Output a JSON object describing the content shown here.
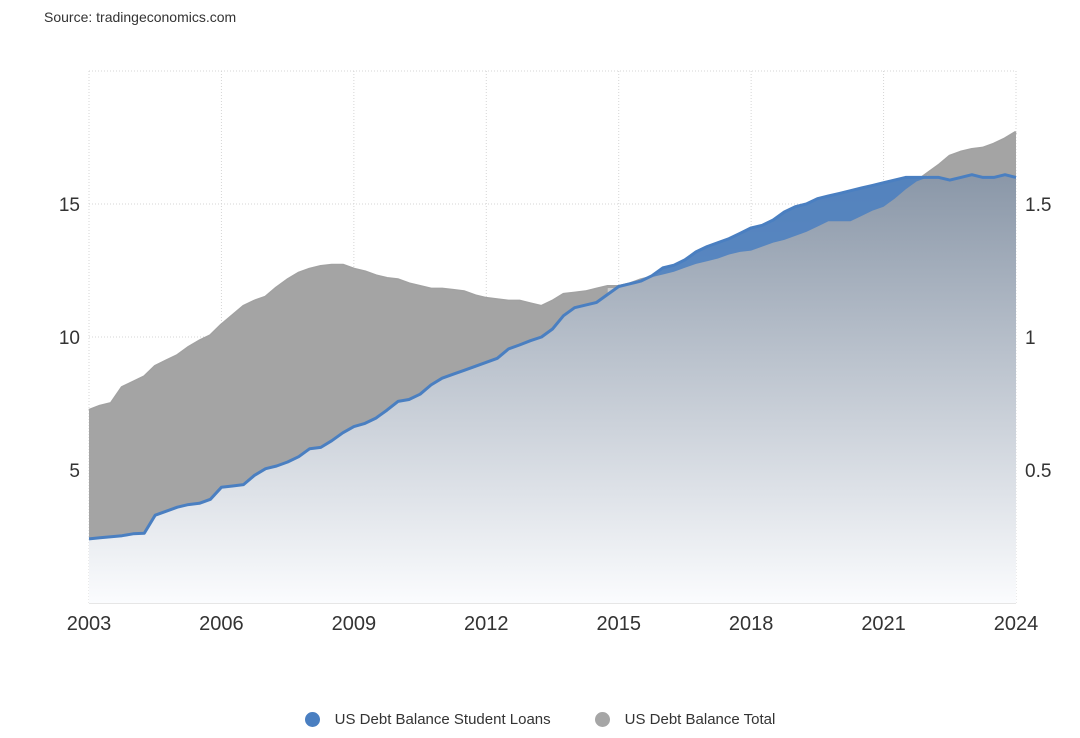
{
  "source_text": "Source: tradingeconomics.com",
  "colors": {
    "student_loans": "#4a7fc1",
    "total": "#a6a6a6",
    "grid": "#d6d6d6",
    "axis_text": "#333333"
  },
  "chart_data": {
    "type": "area",
    "x_tick_labels": [
      "2003",
      "2006",
      "2009",
      "2012",
      "2015",
      "2018",
      "2021",
      "2024"
    ],
    "xlim": [
      2003,
      2024
    ],
    "y_left": {
      "ticks": [
        "5",
        "10",
        "15"
      ],
      "ylim": [
        0,
        20
      ],
      "series": "US Debt Balance Total"
    },
    "y_right": {
      "ticks": [
        "0.5",
        "1",
        "1.5"
      ],
      "ylim": [
        0,
        2.0
      ],
      "series": "US Debt Balance Student Loans"
    },
    "grid": true,
    "legend_position": "bottom",
    "series": [
      {
        "name": "US Debt Balance Total",
        "axis": "left",
        "x": [
          2003.0,
          2003.25,
          2003.5,
          2003.75,
          2004.0,
          2004.25,
          2004.5,
          2004.75,
          2005.0,
          2005.25,
          2005.5,
          2005.75,
          2006.0,
          2006.25,
          2006.5,
          2006.75,
          2007.0,
          2007.25,
          2007.5,
          2007.75,
          2008.0,
          2008.25,
          2008.5,
          2008.75,
          2009.0,
          2009.25,
          2009.5,
          2009.75,
          2010.0,
          2010.25,
          2010.5,
          2010.75,
          2011.0,
          2011.25,
          2011.5,
          2011.75,
          2012.0,
          2012.25,
          2012.5,
          2012.75,
          2013.0,
          2013.25,
          2013.5,
          2013.75,
          2014.0,
          2014.25,
          2014.5,
          2014.75,
          2015.0,
          2015.25,
          2015.5,
          2015.75,
          2016.0,
          2016.25,
          2016.5,
          2016.75,
          2017.0,
          2017.25,
          2017.5,
          2017.75,
          2018.0,
          2018.25,
          2018.5,
          2018.75,
          2019.0,
          2019.25,
          2019.5,
          2019.75,
          2020.0,
          2020.25,
          2020.5,
          2020.75,
          2021.0,
          2021.25,
          2021.5,
          2021.75,
          2022.0,
          2022.25,
          2022.5,
          2022.75,
          2023.0,
          2023.25,
          2023.5,
          2023.75,
          2024.0
        ],
        "values": [
          7.24,
          7.4,
          7.5,
          8.1,
          8.3,
          8.5,
          8.9,
          9.1,
          9.3,
          9.6,
          9.85,
          10.05,
          10.45,
          10.8,
          11.15,
          11.35,
          11.5,
          11.85,
          12.15,
          12.4,
          12.55,
          12.65,
          12.7,
          12.7,
          12.55,
          12.45,
          12.3,
          12.2,
          12.15,
          12.0,
          11.9,
          11.8,
          11.8,
          11.75,
          11.7,
          11.55,
          11.45,
          11.4,
          11.35,
          11.35,
          11.25,
          11.15,
          11.35,
          11.6,
          11.65,
          11.7,
          11.8,
          11.9,
          11.9,
          12.0,
          12.15,
          12.25,
          12.35,
          12.45,
          12.6,
          12.75,
          12.85,
          12.95,
          13.1,
          13.2,
          13.25,
          13.4,
          13.55,
          13.65,
          13.8,
          13.95,
          14.15,
          14.35,
          14.35,
          14.35,
          14.55,
          14.75,
          14.9,
          15.2,
          15.55,
          15.85,
          16.15,
          16.45,
          16.8,
          16.95,
          17.05,
          17.1,
          17.25,
          17.45,
          17.7
        ]
      },
      {
        "name": "US Debt Balance Student Loans",
        "axis": "right",
        "x": [
          2003.0,
          2003.25,
          2003.5,
          2003.75,
          2004.0,
          2004.25,
          2004.5,
          2004.75,
          2005.0,
          2005.25,
          2005.5,
          2005.75,
          2006.0,
          2006.25,
          2006.5,
          2006.75,
          2007.0,
          2007.25,
          2007.5,
          2007.75,
          2008.0,
          2008.25,
          2008.5,
          2008.75,
          2009.0,
          2009.25,
          2009.5,
          2009.75,
          2010.0,
          2010.25,
          2010.5,
          2010.75,
          2011.0,
          2011.25,
          2011.5,
          2011.75,
          2012.0,
          2012.25,
          2012.5,
          2012.75,
          2013.0,
          2013.25,
          2013.5,
          2013.75,
          2014.0,
          2014.25,
          2014.5,
          2014.75,
          2015.0,
          2015.25,
          2015.5,
          2015.75,
          2016.0,
          2016.25,
          2016.5,
          2016.75,
          2017.0,
          2017.25,
          2017.5,
          2017.75,
          2018.0,
          2018.25,
          2018.5,
          2018.75,
          2019.0,
          2019.25,
          2019.5,
          2019.75,
          2020.0,
          2020.25,
          2020.5,
          2020.75,
          2021.0,
          2021.25,
          2021.5,
          2021.75,
          2022.0,
          2022.25,
          2022.5,
          2022.75,
          2023.0,
          2023.25,
          2023.5,
          2023.75,
          2024.0
        ],
        "values": [
          0.241,
          0.245,
          0.249,
          0.253,
          0.26,
          0.262,
          0.33,
          0.345,
          0.36,
          0.37,
          0.375,
          0.39,
          0.435,
          0.44,
          0.445,
          0.48,
          0.505,
          0.515,
          0.53,
          0.55,
          0.58,
          0.585,
          0.61,
          0.64,
          0.663,
          0.675,
          0.695,
          0.725,
          0.758,
          0.765,
          0.785,
          0.82,
          0.845,
          0.86,
          0.875,
          0.89,
          0.905,
          0.92,
          0.955,
          0.97,
          0.986,
          1.0,
          1.03,
          1.08,
          1.11,
          1.12,
          1.13,
          1.16,
          1.19,
          1.2,
          1.21,
          1.23,
          1.26,
          1.27,
          1.29,
          1.32,
          1.34,
          1.355,
          1.37,
          1.39,
          1.41,
          1.42,
          1.44,
          1.47,
          1.49,
          1.5,
          1.52,
          1.53,
          1.54,
          1.55,
          1.56,
          1.57,
          1.58,
          1.59,
          1.6,
          1.6,
          1.6,
          1.6,
          1.59,
          1.6,
          1.61,
          1.6,
          1.6,
          1.61,
          1.6
        ]
      }
    ]
  }
}
